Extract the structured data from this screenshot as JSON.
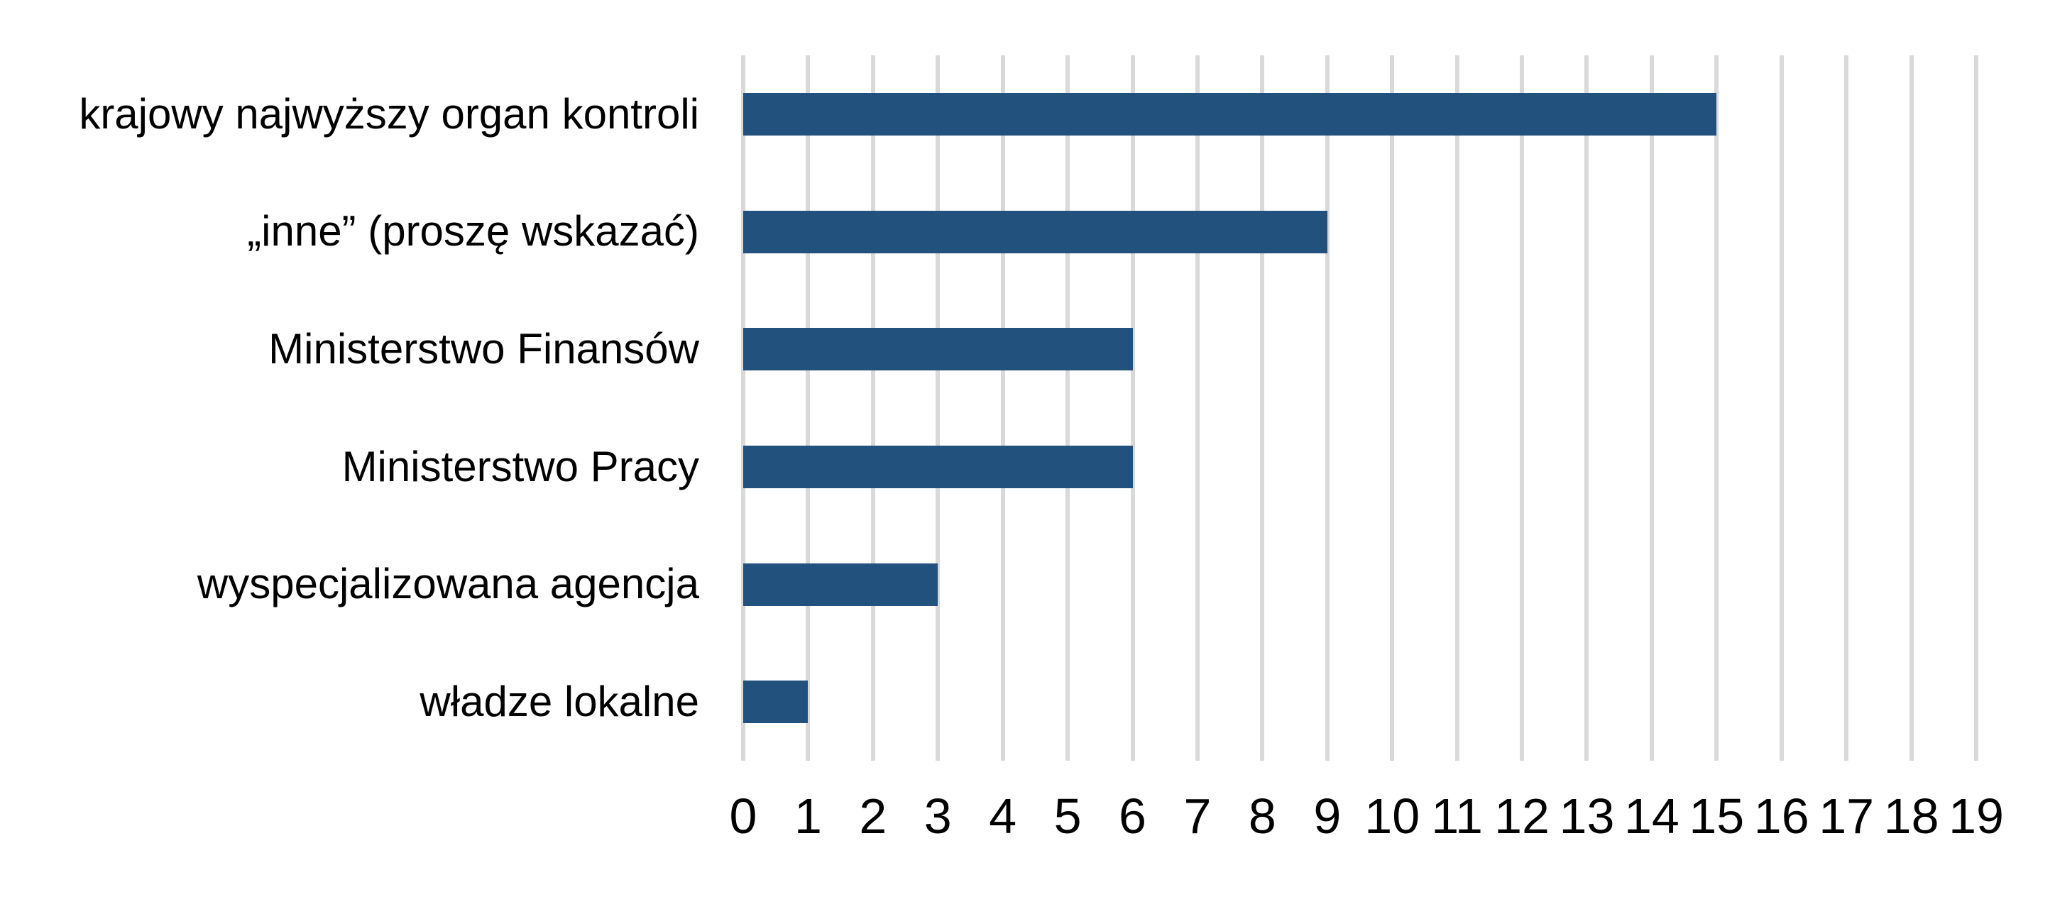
{
  "chart_data": {
    "type": "bar",
    "orientation": "horizontal",
    "title": "",
    "xlabel": "",
    "ylabel": "",
    "categories": [
      "krajowy najwyższy organ kontroli",
      "„inne” (proszę wskazać)",
      "Ministerstwo Finansów",
      "Ministerstwo Pracy",
      "wyspecjalizowana agencja",
      "władze lokalne"
    ],
    "values": [
      15,
      9,
      6,
      6,
      3,
      1
    ],
    "xlim": [
      0,
      19
    ],
    "x_ticks": [
      0,
      1,
      2,
      3,
      4,
      5,
      6,
      7,
      8,
      9,
      10,
      11,
      12,
      13,
      14,
      15,
      16,
      17,
      18,
      19
    ],
    "x_tick_labels": [
      "0",
      "1",
      "2",
      "3",
      "4",
      "5",
      "6",
      "7",
      "8",
      "9",
      "10",
      "11",
      "12",
      "13",
      "14",
      "15",
      "16",
      "17",
      "18",
      "19"
    ],
    "grid": "vertical-gridlines-on",
    "legend": "none",
    "data_labels": "none",
    "colors": {
      "bar": "#22517D",
      "gridline": "#D9D9D9",
      "text": "#000000",
      "background": "#FFFFFF"
    }
  }
}
